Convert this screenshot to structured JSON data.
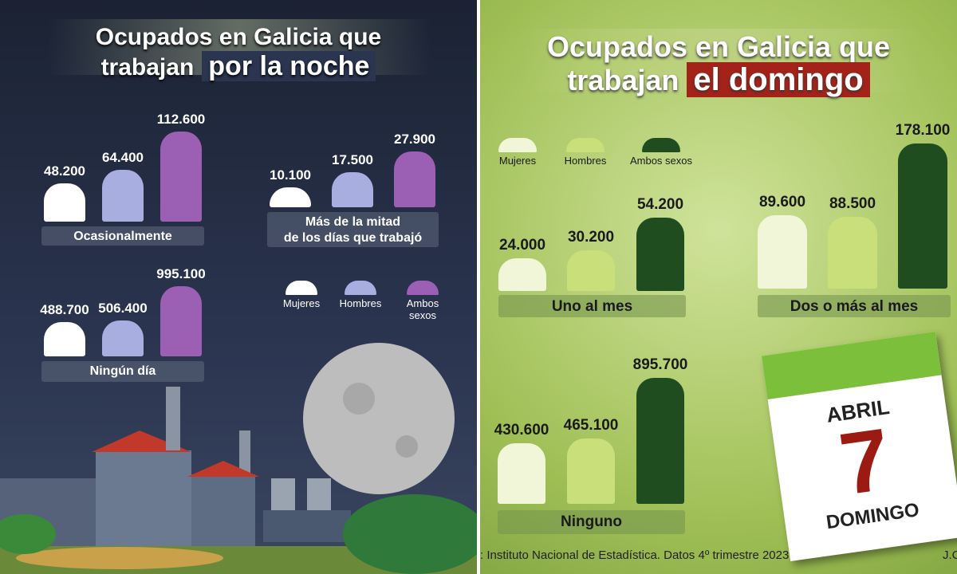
{
  "panels": [
    {
      "title_line1": "Ocupados en Galicia que",
      "title_line2": "trabajan",
      "title_highlight": "por la noche",
      "legend": [
        {
          "name": "Mujeres",
          "color": "#ffffff"
        },
        {
          "name": "Hombres",
          "color": "#a9aee0"
        },
        {
          "name": "Ambos sexos",
          "color": "#9b5fb3"
        }
      ],
      "chart_data": [
        {
          "type": "bar",
          "label_lines": [
            "Ocasionalmente"
          ],
          "values": [
            48200,
            64400,
            112600
          ],
          "value_labels": [
            "48.200",
            "64.400",
            "112.600"
          ]
        },
        {
          "type": "bar",
          "label_lines": [
            "Más de la mitad",
            "de los días que trabajó"
          ],
          "values": [
            10100,
            17500,
            27900
          ],
          "value_labels": [
            "10.100",
            "17.500",
            "27.900"
          ]
        },
        {
          "type": "bar",
          "label_lines": [
            "Ningún día"
          ],
          "values": [
            488700,
            506400,
            995100
          ],
          "value_labels": [
            "488.700",
            "506.400",
            "995.100"
          ]
        }
      ]
    },
    {
      "title_line1": "Ocupados en Galicia que",
      "title_line2": "trabajan",
      "title_highlight": "el domingo",
      "legend": [
        {
          "name": "Mujeres",
          "color": "#f2f6d8"
        },
        {
          "name": "Hombres",
          "color": "#c8df7a"
        },
        {
          "name": "Ambos sexos",
          "color": "#1f4d20"
        }
      ],
      "chart_data": [
        {
          "type": "bar",
          "label_lines": [
            "Uno al mes"
          ],
          "values": [
            24000,
            30200,
            54200
          ],
          "value_labels": [
            "24.000",
            "30.200",
            "54.200"
          ]
        },
        {
          "type": "bar",
          "label_lines": [
            "Dos o más al mes"
          ],
          "values": [
            89600,
            88500,
            178100
          ],
          "value_labels": [
            "89.600",
            "88.500",
            "178.100"
          ]
        },
        {
          "type": "bar",
          "label_lines": [
            "Ninguno"
          ],
          "values": [
            430600,
            465100,
            895700
          ],
          "value_labels": [
            "430.600",
            "465.100",
            "895.700"
          ]
        }
      ]
    }
  ],
  "calendar": {
    "month": "ABRIL",
    "day": "7",
    "weekday": "DOMINGO"
  },
  "source": ": Instituto Nacional de Estadística. Datos 4º trimestre 2023",
  "credit": "J.C"
}
